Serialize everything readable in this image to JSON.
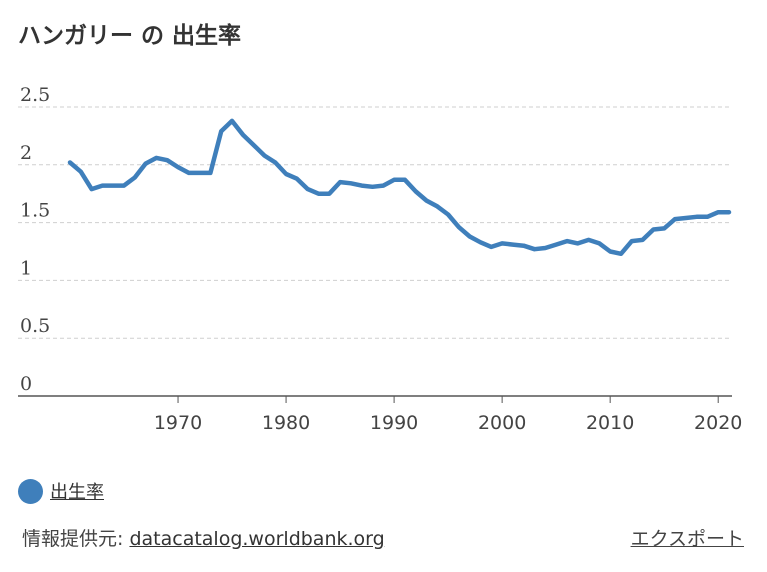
{
  "title": "ハンガリー の 出生率",
  "legend": {
    "label": "出生率",
    "color": "#3f7fbb"
  },
  "source": {
    "prefix": "情報提供元: ",
    "link": "datacatalog.worldbank.org"
  },
  "export_label": "エクスポート",
  "chart_data": {
    "type": "line",
    "title": "ハンガリー の 出生率",
    "xlabel": "",
    "ylabel": "",
    "ylim": [
      0,
      2.5
    ],
    "xlim": [
      1960,
      2021
    ],
    "y_ticks": [
      "0",
      "0.5",
      "1",
      "1.5",
      "2",
      "2.5"
    ],
    "x_ticks": [
      "1970",
      "1980",
      "1990",
      "2000",
      "2010",
      "2020"
    ],
    "grid": "horizontal dashed",
    "legend_position": "bottom-left",
    "series": [
      {
        "name": "出生率",
        "color": "#3f7fbb",
        "x": [
          1960,
          1961,
          1962,
          1963,
          1964,
          1965,
          1966,
          1967,
          1968,
          1969,
          1970,
          1971,
          1972,
          1973,
          1974,
          1975,
          1976,
          1977,
          1978,
          1979,
          1980,
          1981,
          1982,
          1983,
          1984,
          1985,
          1986,
          1987,
          1988,
          1989,
          1990,
          1991,
          1992,
          1993,
          1994,
          1995,
          1996,
          1997,
          1998,
          1999,
          2000,
          2001,
          2002,
          2003,
          2004,
          2005,
          2006,
          2007,
          2008,
          2009,
          2010,
          2011,
          2012,
          2013,
          2014,
          2015,
          2016,
          2017,
          2018,
          2019,
          2020,
          2021
        ],
        "values": [
          2.02,
          1.94,
          1.79,
          1.82,
          1.82,
          1.82,
          1.89,
          2.01,
          2.06,
          2.04,
          1.98,
          1.93,
          1.93,
          1.93,
          2.29,
          2.38,
          2.26,
          2.17,
          2.08,
          2.02,
          1.92,
          1.88,
          1.79,
          1.75,
          1.75,
          1.85,
          1.84,
          1.82,
          1.81,
          1.82,
          1.87,
          1.87,
          1.77,
          1.69,
          1.64,
          1.57,
          1.46,
          1.38,
          1.33,
          1.29,
          1.32,
          1.31,
          1.3,
          1.27,
          1.28,
          1.31,
          1.34,
          1.32,
          1.35,
          1.32,
          1.25,
          1.23,
          1.34,
          1.35,
          1.44,
          1.45,
          1.53,
          1.54,
          1.55,
          1.55,
          1.59,
          1.59
        ]
      }
    ]
  }
}
